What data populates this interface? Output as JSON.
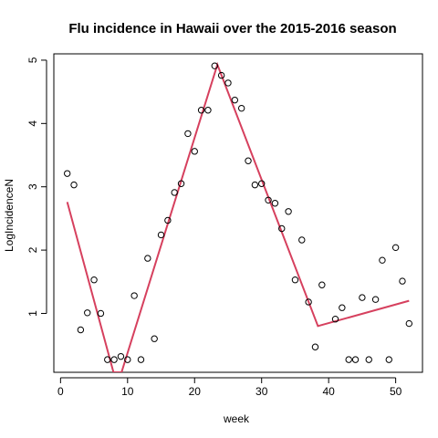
{
  "chart_data": {
    "type": "scatter",
    "title": "Flu incidence in Hawaii over the 2015-2016 season",
    "xlabel": "week",
    "ylabel": "LogIncidenceN",
    "xlim": [
      -1,
      54
    ],
    "ylim": [
      0.07,
      5.1
    ],
    "xticks": [
      0,
      10,
      20,
      30,
      40,
      50
    ],
    "yticks": [
      1,
      2,
      3,
      4,
      5
    ],
    "grid": false,
    "legend": "none",
    "point_color": "#000000",
    "fit_color": "#d6405e",
    "points": {
      "x": [
        1,
        2,
        3,
        4,
        5,
        6,
        7,
        8,
        9,
        10,
        11,
        12,
        13,
        14,
        15,
        16,
        17,
        18,
        19,
        20,
        21,
        22,
        23,
        24,
        25,
        26,
        27,
        28,
        29,
        30,
        31,
        32,
        33,
        34,
        35,
        36,
        37,
        38,
        39,
        41,
        42,
        43,
        44,
        45,
        46,
        47,
        48,
        49,
        50,
        51,
        52
      ],
      "y": [
        3.21,
        3.03,
        0.74,
        1.01,
        1.53,
        1.0,
        0.27,
        0.27,
        0.32,
        0.27,
        1.28,
        0.27,
        1.87,
        0.6,
        2.24,
        2.47,
        2.91,
        3.05,
        3.84,
        3.56,
        4.21,
        4.21,
        4.91,
        4.76,
        4.64,
        4.37,
        4.24,
        3.41,
        3.03,
        3.05,
        2.79,
        2.74,
        2.34,
        2.61,
        1.53,
        2.16,
        1.18,
        0.47,
        1.45,
        0.91,
        1.09,
        0.27,
        0.27,
        1.25,
        0.27,
        1.22,
        1.84,
        0.27,
        2.04,
        1.51,
        0.84
      ]
    },
    "fit_line": {
      "x": [
        1,
        7.9,
        9.1,
        23.4,
        38.4,
        52
      ],
      "y": [
        2.76,
        0.07,
        0.07,
        4.93,
        0.8,
        1.2
      ]
    }
  }
}
